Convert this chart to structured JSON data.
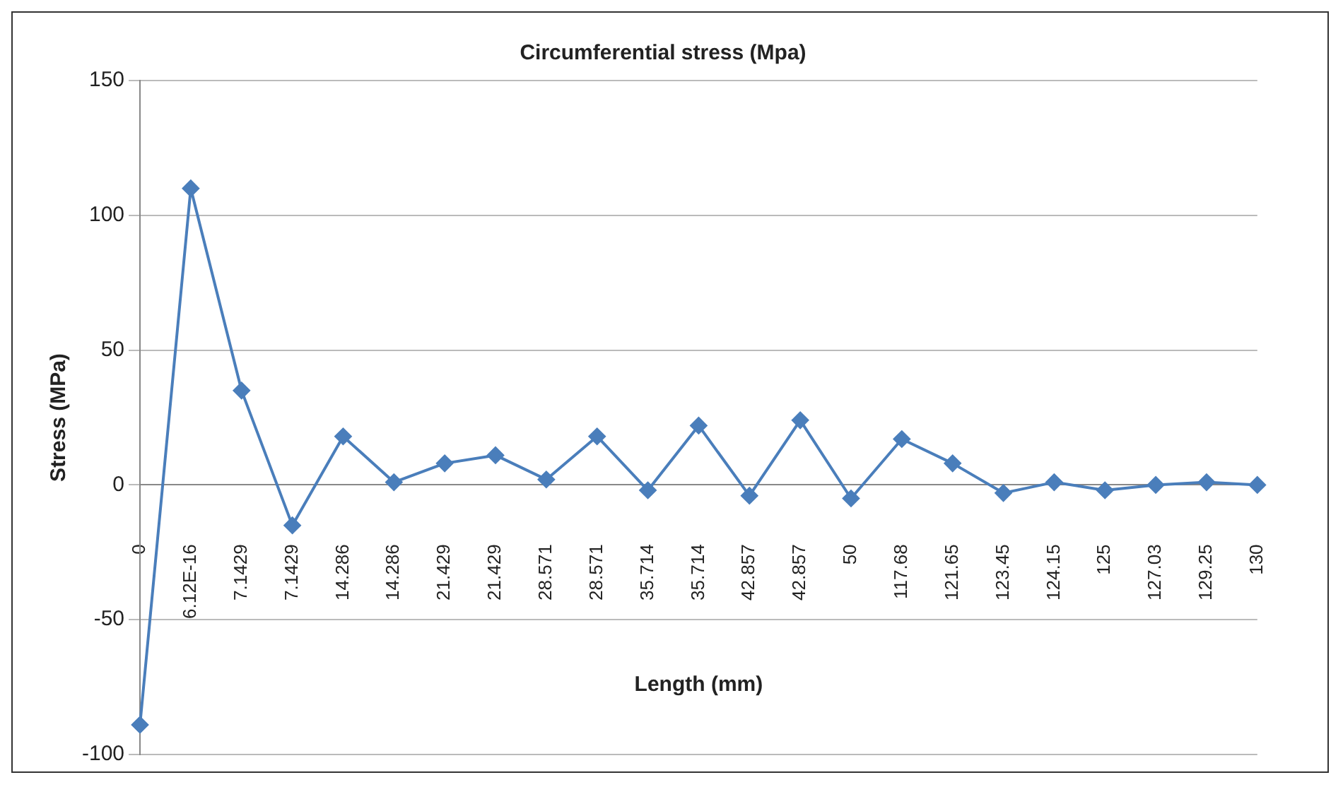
{
  "chart_data": {
    "type": "line",
    "title": "Circumferential stress (Mpa)",
    "xlabel": "Length (mm)",
    "ylabel": "Stress (MPa)",
    "categories": [
      "0",
      "6.12E-16",
      "7.1429",
      "7.1429",
      "14.286",
      "14.286",
      "21.429",
      "21.429",
      "28.571",
      "28.571",
      "35.714",
      "35.714",
      "42.857",
      "42.857",
      "50",
      "117.68",
      "121.65",
      "123.45",
      "124.15",
      "125",
      "127.03",
      "129.25",
      "130"
    ],
    "series": [
      {
        "color": "#4a7ebb",
        "values": [
          -89,
          110,
          35,
          -15,
          18,
          1,
          8,
          11,
          2,
          18,
          -2,
          22,
          -4,
          24,
          -5,
          17,
          8,
          -3,
          1,
          -2,
          0,
          1,
          0
        ]
      }
    ],
    "ylim": [
      -100,
      150
    ],
    "yticks": [
      -100,
      -50,
      0,
      50,
      100,
      150
    ],
    "grid": "y",
    "legend": false,
    "marker": "diamond",
    "line_style": "solid"
  }
}
